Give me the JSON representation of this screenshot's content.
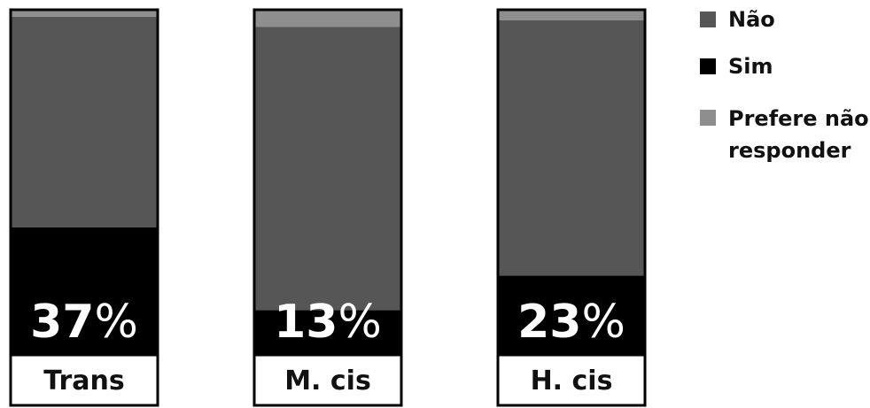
{
  "chart_data": {
    "type": "bar",
    "stacked": true,
    "normalized": true,
    "categories": [
      "Trans",
      "M. cis",
      "H. cis"
    ],
    "series": [
      {
        "name": "Sim",
        "values": [
          37,
          13,
          23
        ],
        "color": "#000000"
      },
      {
        "name": "Não",
        "values": [
          61,
          82,
          74
        ],
        "color": "#565656"
      },
      {
        "name": "Prefere não responder",
        "values": [
          2,
          5,
          3
        ],
        "color": "#8e8e8e"
      }
    ],
    "percent_labels": [
      "37%",
      "13%",
      "23%"
    ],
    "legend": {
      "position": "top-right",
      "items": [
        {
          "label": "Não",
          "color": "#565656"
        },
        {
          "label": "Sim",
          "color": "#000000"
        },
        {
          "label_lines": [
            "Prefere não",
            "responder"
          ],
          "color": "#8e8e8e"
        }
      ]
    },
    "ylim": [
      0,
      100
    ]
  }
}
